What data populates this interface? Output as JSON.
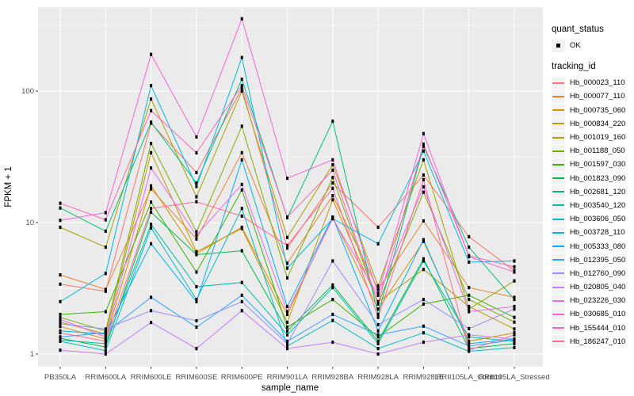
{
  "chart_data": {
    "type": "line",
    "title": "",
    "xlabel": "sample_name",
    "ylabel": "FPKM + 1",
    "y_scale": "log10",
    "y_ticks": [
      1,
      10,
      100
    ],
    "y_minor_ticks": [
      3.162,
      31.62,
      316.23
    ],
    "ylim": [
      0.78,
      450
    ],
    "grid": true,
    "legend_position": "right",
    "point_marker_color": "#000000",
    "panel_bg": "#EBEBEB",
    "grid_color": "#FFFFFF",
    "axis_text_color": "#4D4D4D",
    "legend_key_bg": "#F2F2F2",
    "categories": [
      "PB350LA",
      "RRIM600LA",
      "RRIM600LE",
      "RRIM600SE",
      "RRIM600PE",
      "RRIM901LA",
      "RRIM928BA",
      "RRIM928LA",
      "RRIM928LE",
      "RRII105LA_Control",
      "RRII105LA_Stressed"
    ],
    "legend": {
      "quant_status": {
        "title": "quant_status",
        "items": [
          {
            "label": "OK",
            "marker": "point",
            "color": "#000000"
          }
        ]
      },
      "tracking_id": {
        "title": "tracking_id"
      }
    },
    "series": [
      {
        "name": "Hb_000023_110",
        "color": "#F8766D",
        "values": [
          3.4,
          3.0,
          57,
          24,
          105,
          6.4,
          20,
          9.2,
          23,
          7.8,
          4.3
        ]
      },
      {
        "name": "Hb_000077_110",
        "color": "#EA8331",
        "values": [
          4.0,
          3.1,
          18,
          7.5,
          34,
          4.9,
          16,
          3.1,
          10.3,
          3.2,
          2.7
        ]
      },
      {
        "name": "Hb_000735_060",
        "color": "#D89000",
        "values": [
          1.62,
          1.3,
          19,
          5.8,
          9.2,
          2.0,
          11,
          2.2,
          7.2,
          1.25,
          1.45
        ]
      },
      {
        "name": "Hb_000834_220",
        "color": "#C09B00",
        "values": [
          1.75,
          1.42,
          34,
          6.0,
          9.0,
          1.74,
          14.9,
          2.5,
          4.4,
          2.3,
          1.55
        ]
      },
      {
        "name": "Hb_001019_160",
        "color": "#A3A500",
        "values": [
          9.2,
          6.5,
          87,
          15.7,
          100,
          7.7,
          27.5,
          3.3,
          30,
          2.2,
          3.6
        ]
      },
      {
        "name": "Hb_001188_050",
        "color": "#7CAE00",
        "values": [
          1.9,
          1.5,
          40,
          8.5,
          54,
          3.8,
          22,
          2.4,
          17,
          2.6,
          1.75
        ]
      },
      {
        "name": "Hb_001597_030",
        "color": "#39B600",
        "values": [
          2.0,
          2.1,
          14.3,
          4.2,
          17.7,
          1.6,
          2.6,
          1.35,
          2.4,
          2.8,
          1.9
        ]
      },
      {
        "name": "Hb_001823_090",
        "color": "#00BB4E",
        "values": [
          1.32,
          1.13,
          12.0,
          5.7,
          6.1,
          1.5,
          3.35,
          1.25,
          5.3,
          1.1,
          1.2
        ]
      },
      {
        "name": "Hb_002681_120",
        "color": "#00BF7D",
        "values": [
          12.9,
          8.6,
          58,
          20,
          123,
          10.9,
          59,
          2.0,
          38,
          6.5,
          2.6
        ]
      },
      {
        "name": "Hb_003540_120",
        "color": "#00C1A3",
        "values": [
          1.28,
          1.2,
          9.7,
          3.25,
          3.5,
          1.4,
          3.2,
          1.2,
          5.1,
          1.35,
          1.25
        ]
      },
      {
        "name": "Hb_003606_050",
        "color": "#00BFC4",
        "values": [
          1.25,
          1.06,
          9.1,
          2.6,
          12.8,
          1.15,
          1.8,
          1.1,
          1.45,
          1.05,
          1.12
        ]
      },
      {
        "name": "Hb_003728_110",
        "color": "#00BAE0",
        "values": [
          2.5,
          4.1,
          110,
          18.8,
          180,
          4.5,
          10.7,
          6.9,
          35,
          5.0,
          5.1
        ]
      },
      {
        "name": "Hb_005333_080",
        "color": "#00B0F6",
        "values": [
          1.5,
          1.42,
          6.9,
          2.5,
          30,
          2.3,
          11,
          1.5,
          7.4,
          1.2,
          1.3
        ]
      },
      {
        "name": "Hb_012395_050",
        "color": "#35A2FF",
        "values": [
          1.35,
          1.45,
          2.7,
          1.6,
          2.8,
          1.25,
          2.0,
          1.4,
          1.63,
          1.15,
          1.28
        ]
      },
      {
        "name": "Hb_012760_090",
        "color": "#9590FF",
        "values": [
          1.7,
          1.55,
          2.14,
          1.79,
          2.5,
          1.2,
          5.1,
          1.67,
          2.6,
          1.56,
          2.2
        ]
      },
      {
        "name": "Hb_020805_040",
        "color": "#C77CFF",
        "values": [
          1.07,
          1.0,
          1.74,
          1.1,
          2.14,
          1.1,
          1.23,
          1.0,
          1.23,
          1.4,
          1.3
        ]
      },
      {
        "name": "Hb_023226_030",
        "color": "#E76BF3",
        "values": [
          1.84,
          1.35,
          26,
          8.0,
          19.5,
          2.1,
          10.7,
          2.8,
          18.7,
          2.1,
          2.3
        ]
      },
      {
        "name": "Hb_030685_010",
        "color": "#FA62DB",
        "values": [
          10.4,
          11.9,
          190,
          44.8,
          355,
          21.7,
          30,
          2.9,
          47.5,
          5.5,
          4.2
        ]
      },
      {
        "name": "Hb_155444_010",
        "color": "#FF62BC",
        "values": [
          14.0,
          10.5,
          71,
          33.9,
          110,
          11.0,
          25,
          2.43,
          39.5,
          5.6,
          4.6
        ]
      },
      {
        "name": "Hb_186247_010",
        "color": "#FF6A98",
        "values": [
          1.45,
          1.25,
          12.8,
          14.4,
          11.2,
          6.7,
          18.2,
          1.9,
          21.2,
          1.07,
          1.4
        ]
      }
    ]
  }
}
